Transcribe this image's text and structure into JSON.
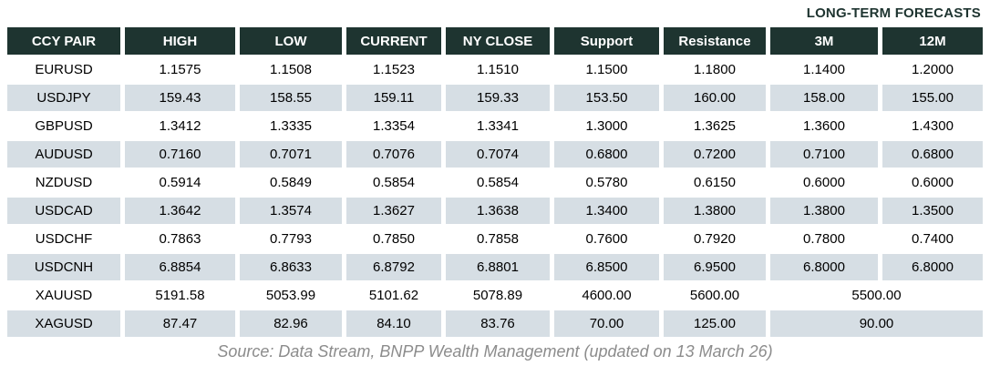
{
  "note": "LONG-TERM FORECASTS",
  "chart_data": {
    "type": "table",
    "columns": [
      "CCY PAIR",
      "HIGH",
      "LOW",
      "CURRENT",
      "NY CLOSE",
      "Support",
      "Resistance",
      "3M",
      "12M"
    ],
    "rows": [
      {
        "pair": "EURUSD",
        "values": [
          "1.1575",
          "1.1508",
          "1.1523",
          "1.1510",
          "1.1500",
          "1.1800",
          "1.1400",
          "1.2000"
        ]
      },
      {
        "pair": "USDJPY",
        "values": [
          "159.43",
          "158.55",
          "159.11",
          "159.33",
          "153.50",
          "160.00",
          "158.00",
          "155.00"
        ]
      },
      {
        "pair": "GBPUSD",
        "values": [
          "1.3412",
          "1.3335",
          "1.3354",
          "1.3341",
          "1.3000",
          "1.3625",
          "1.3600",
          "1.4300"
        ]
      },
      {
        "pair": "AUDUSD",
        "values": [
          "0.7160",
          "0.7071",
          "0.7076",
          "0.7074",
          "0.6800",
          "0.7200",
          "0.7100",
          "0.6800"
        ]
      },
      {
        "pair": "NZDUSD",
        "values": [
          "0.5914",
          "0.5849",
          "0.5854",
          "0.5854",
          "0.5780",
          "0.6150",
          "0.6000",
          "0.6000"
        ]
      },
      {
        "pair": "USDCAD",
        "values": [
          "1.3642",
          "1.3574",
          "1.3627",
          "1.3638",
          "1.3400",
          "1.3800",
          "1.3800",
          "1.3500"
        ]
      },
      {
        "pair": "USDCHF",
        "values": [
          "0.7863",
          "0.7793",
          "0.7850",
          "0.7858",
          "0.7600",
          "0.7920",
          "0.7800",
          "0.7400"
        ]
      },
      {
        "pair": "USDCNH",
        "values": [
          "6.8854",
          "6.8633",
          "6.8792",
          "6.8801",
          "6.8500",
          "6.9500",
          "6.8000",
          "6.8000"
        ]
      },
      {
        "pair": "XAUUSD",
        "values": [
          "5191.58",
          "5053.99",
          "5101.62",
          "5078.89",
          "4600.00",
          "5600.00"
        ],
        "forecast_3m_12m": "5500.00"
      },
      {
        "pair": "XAGUSD",
        "values": [
          "87.47",
          "82.96",
          "84.10",
          "83.76",
          "70.00",
          "125.00"
        ],
        "forecast_3m_12m": "90.00"
      }
    ],
    "title": "LONG-TERM FORECASTS",
    "legend_position": "none",
    "grid": false
  },
  "footer": {
    "source": "Source: Data Stream, BNPP Wealth Management (updated on 13 March 26)"
  },
  "colors": {
    "header_bg": "#1e3430",
    "header_text": "#ffffff",
    "stripe_bg": "#d6dee4",
    "note_color": "#1e3430",
    "text_color": "#000000",
    "source_color": "#8c8c8c"
  }
}
